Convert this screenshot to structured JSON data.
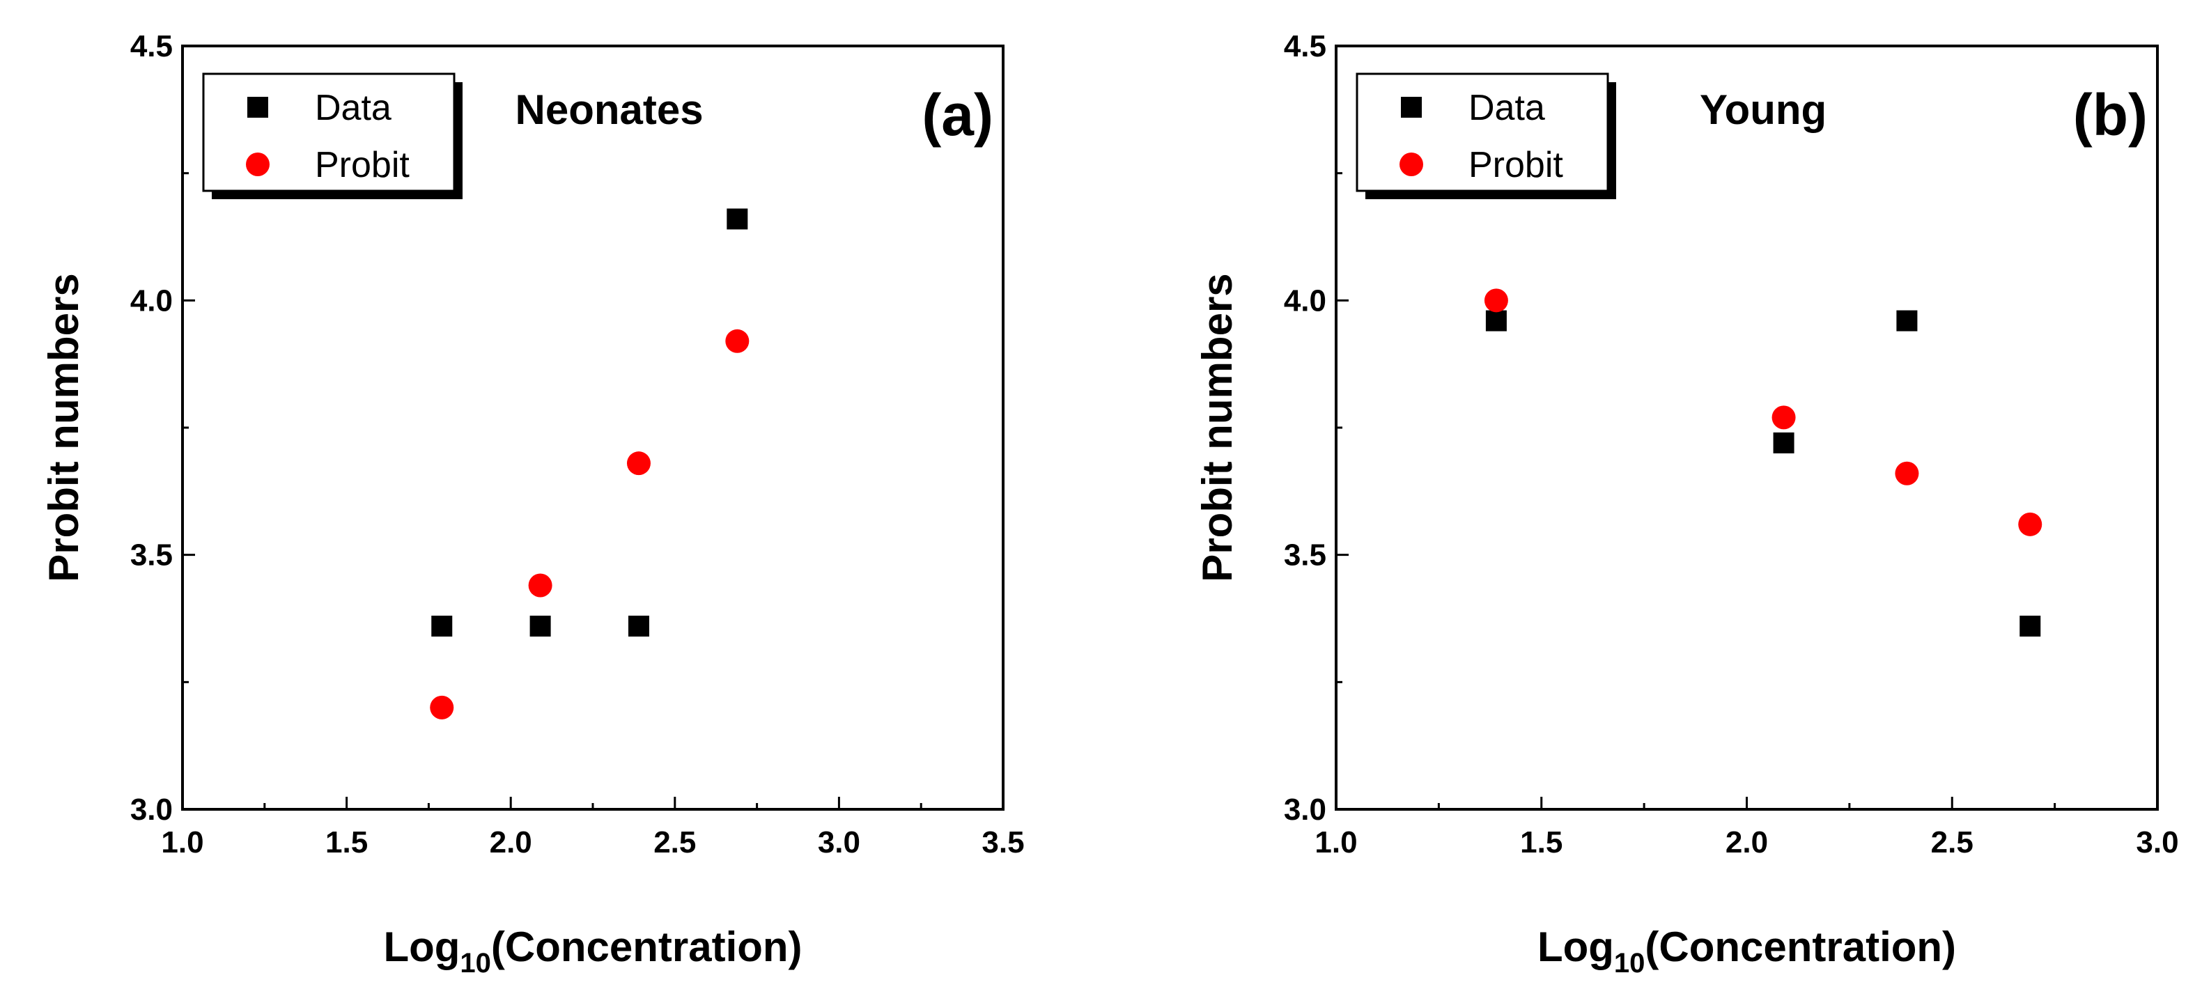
{
  "chart_data": [
    {
      "type": "scatter",
      "panel_label": "(a)",
      "title": "Neonates",
      "xlabel_main": "Log",
      "xlabel_sub": "10",
      "xlabel_rest": "(Concentration)",
      "ylabel": "Probit numbers",
      "xlim": [
        1.0,
        3.5
      ],
      "ylim": [
        3.0,
        4.5
      ],
      "xticks": [
        1.0,
        1.5,
        2.0,
        2.5,
        3.0,
        3.5
      ],
      "xtick_labels": [
        "1.0",
        "1.5",
        "2.0",
        "2.5",
        "3.0",
        "3.5"
      ],
      "yticks": [
        3.0,
        3.5,
        4.0,
        4.5
      ],
      "ytick_labels": [
        "3.0",
        "3.5",
        "4.0",
        "4.5"
      ],
      "grid": false,
      "legend_position": "top-left",
      "series": [
        {
          "name": "Data",
          "marker": "square",
          "color": "#000000",
          "x": [
            1.79,
            2.09,
            2.39,
            2.69
          ],
          "y": [
            3.36,
            3.36,
            3.36,
            4.16
          ]
        },
        {
          "name": "Probit",
          "marker": "circle",
          "color": "#ff0000",
          "x": [
            1.79,
            2.09,
            2.39,
            2.69
          ],
          "y": [
            3.2,
            3.44,
            3.68,
            3.92
          ]
        }
      ]
    },
    {
      "type": "scatter",
      "panel_label": "(b)",
      "title": "Young",
      "xlabel_main": "Log",
      "xlabel_sub": "10",
      "xlabel_rest": "(Concentration)",
      "ylabel": "Probit numbers",
      "xlim": [
        1.0,
        3.0
      ],
      "ylim": [
        3.0,
        4.5
      ],
      "xticks": [
        1.0,
        1.5,
        2.0,
        2.5,
        3.0
      ],
      "xtick_labels": [
        "1.0",
        "1.5",
        "2.0",
        "2.5",
        "3.0"
      ],
      "yticks": [
        3.0,
        3.5,
        4.0,
        4.5
      ],
      "ytick_labels": [
        "3.0",
        "3.5",
        "4.0",
        "4.5"
      ],
      "grid": false,
      "legend_position": "top-left",
      "series": [
        {
          "name": "Data",
          "marker": "square",
          "color": "#000000",
          "x": [
            1.39,
            2.09,
            2.39,
            2.69
          ],
          "y": [
            3.96,
            3.72,
            3.96,
            3.36
          ]
        },
        {
          "name": "Probit",
          "marker": "circle",
          "color": "#ff0000",
          "x": [
            1.39,
            2.09,
            2.39,
            2.69
          ],
          "y": [
            4.0,
            3.77,
            3.66,
            3.56
          ]
        }
      ]
    }
  ]
}
